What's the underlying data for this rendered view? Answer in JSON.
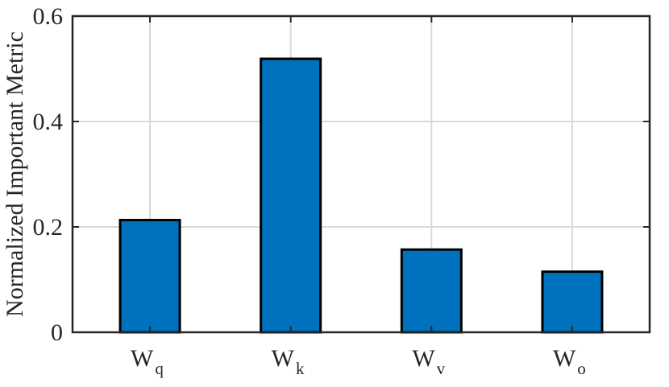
{
  "chart_data": {
    "type": "bar",
    "categories": [
      {
        "main": "W",
        "sub": "q"
      },
      {
        "main": "W",
        "sub": "k"
      },
      {
        "main": "W",
        "sub": "v"
      },
      {
        "main": "W",
        "sub": "o"
      }
    ],
    "values": [
      0.213,
      0.519,
      0.157,
      0.115
    ],
    "ylabel": "Normalized Important Metric",
    "xlabel": "",
    "title": "",
    "ylim": [
      0,
      0.6
    ],
    "yticks": [
      "0",
      "0.2",
      "0.4",
      "0.6"
    ],
    "grid": true,
    "bar_color": "#0072BD",
    "bar_edge_color": "#000000"
  }
}
